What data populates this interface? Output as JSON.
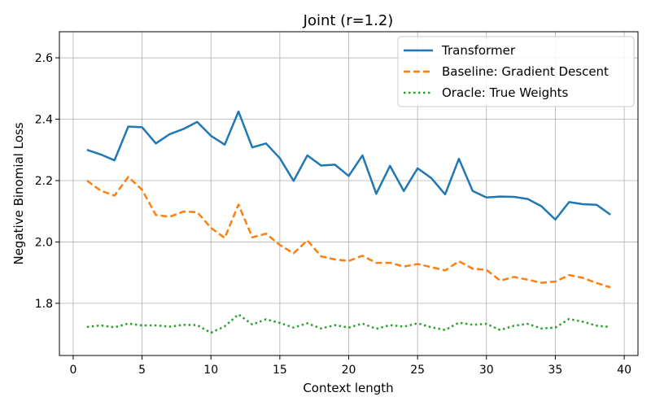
{
  "chart_data": {
    "type": "line",
    "title": "Joint (r=1.2)",
    "xlabel": "Context length",
    "ylabel": "Negative Binomial Loss",
    "xlim": [
      -1,
      41
    ],
    "ylim": [
      1.63,
      2.685
    ],
    "xticks": [
      0,
      5,
      10,
      15,
      20,
      25,
      30,
      35,
      40
    ],
    "yticks": [
      1.8,
      2.0,
      2.2,
      2.4,
      2.6
    ],
    "ytick_labels": [
      "1.8",
      "2.0",
      "2.2",
      "2.4",
      "2.6"
    ],
    "grid": true,
    "legend_position": "top-right",
    "x": [
      1,
      2,
      3,
      4,
      5,
      6,
      7,
      8,
      9,
      10,
      11,
      12,
      13,
      14,
      15,
      16,
      17,
      18,
      19,
      20,
      21,
      22,
      23,
      24,
      25,
      26,
      27,
      28,
      29,
      30,
      31,
      32,
      33,
      34,
      35,
      36,
      37,
      38,
      39
    ],
    "series": [
      {
        "name": "Transformer",
        "color": "#1f77b4",
        "style": "solid",
        "values": [
          2.3,
          2.285,
          2.266,
          2.376,
          2.374,
          2.321,
          2.351,
          2.368,
          2.391,
          2.346,
          2.317,
          2.425,
          2.308,
          2.321,
          2.273,
          2.199,
          2.282,
          2.249,
          2.252,
          2.215,
          2.282,
          2.157,
          2.248,
          2.166,
          2.24,
          2.208,
          2.155,
          2.271,
          2.166,
          2.145,
          2.148,
          2.147,
          2.14,
          2.116,
          2.073,
          2.13,
          2.123,
          2.121,
          2.089
        ]
      },
      {
        "name": "Baseline: Gradient Descent",
        "color": "#ff7f0e",
        "style": "dashed",
        "values": [
          2.2,
          2.167,
          2.151,
          2.212,
          2.17,
          2.088,
          2.082,
          2.099,
          2.097,
          2.046,
          2.013,
          2.122,
          2.015,
          2.027,
          1.99,
          1.963,
          2.005,
          1.953,
          1.943,
          1.938,
          1.955,
          1.932,
          1.932,
          1.92,
          1.928,
          1.918,
          1.907,
          1.937,
          1.913,
          1.909,
          1.874,
          1.886,
          1.877,
          1.867,
          1.871,
          1.892,
          1.883,
          1.866,
          1.852
        ]
      },
      {
        "name": "Oracle: True Weights",
        "color": "#2ca02c",
        "style": "dotted",
        "values": [
          1.723,
          1.728,
          1.722,
          1.734,
          1.728,
          1.728,
          1.724,
          1.73,
          1.729,
          1.704,
          1.725,
          1.764,
          1.731,
          1.748,
          1.736,
          1.721,
          1.735,
          1.718,
          1.729,
          1.721,
          1.734,
          1.717,
          1.729,
          1.724,
          1.735,
          1.722,
          1.713,
          1.737,
          1.73,
          1.733,
          1.713,
          1.727,
          1.733,
          1.718,
          1.721,
          1.749,
          1.74,
          1.727,
          1.723
        ]
      }
    ]
  }
}
